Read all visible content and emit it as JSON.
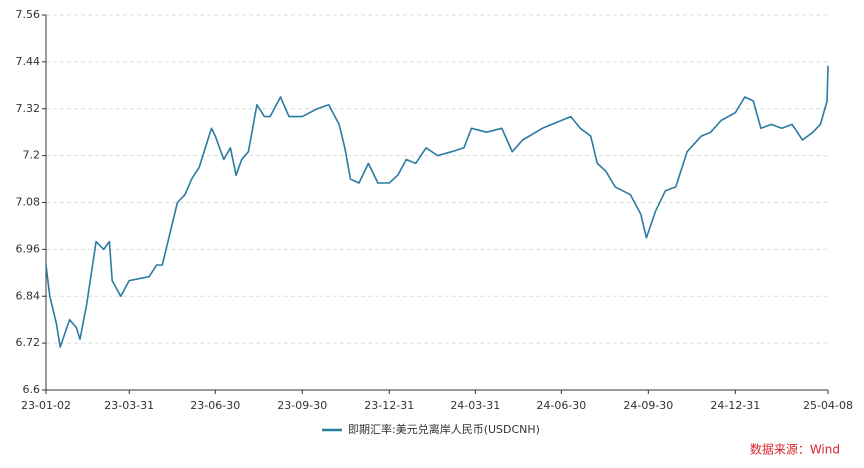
{
  "chart_data": {
    "type": "line",
    "x": [
      "23-01-02",
      "23-01-06",
      "23-01-13",
      "23-01-17",
      "23-01-27",
      "23-02-03",
      "23-02-07",
      "23-02-14",
      "23-02-24",
      "23-03-04",
      "23-03-10",
      "23-03-13",
      "23-03-22",
      "23-03-31",
      "23-04-21",
      "23-04-29",
      "23-05-05",
      "23-05-12",
      "23-05-21",
      "23-05-29",
      "23-06-05",
      "23-06-13",
      "23-06-26",
      "23-06-30",
      "23-07-09",
      "23-07-16",
      "23-07-22",
      "23-07-28",
      "23-08-04",
      "23-08-13",
      "23-08-21",
      "23-08-27",
      "23-09-07",
      "23-09-16",
      "23-09-30",
      "23-10-16",
      "23-10-28",
      "23-11-08",
      "23-11-14",
      "23-11-20",
      "23-11-29",
      "23-12-09",
      "23-12-19",
      "23-12-31",
      "24-01-09",
      "24-01-18",
      "24-01-28",
      "24-02-08",
      "24-02-20",
      "24-03-06",
      "24-03-19",
      "24-03-27",
      "24-04-12",
      "24-04-28",
      "24-05-09",
      "24-05-20",
      "24-06-10",
      "24-06-30",
      "24-07-10",
      "24-07-20",
      "24-07-31",
      "24-08-07",
      "24-08-16",
      "24-08-26",
      "24-09-11",
      "24-09-22",
      "24-09-28",
      "24-10-08",
      "24-10-18",
      "24-10-29",
      "24-11-10",
      "24-11-25",
      "24-12-05",
      "24-12-16",
      "24-12-31",
      "25-01-10",
      "25-01-19",
      "25-01-27",
      "25-02-07",
      "25-02-18",
      "25-03-01",
      "25-03-12",
      "25-03-23",
      "25-03-31",
      "25-04-07",
      "25-04-08"
    ],
    "series": [
      {
        "name": "即期汇率:美元兑离岸人民币(USDCNH)",
        "color": "#2b7ba3",
        "values": [
          6.92,
          6.84,
          6.77,
          6.71,
          6.78,
          6.76,
          6.73,
          6.82,
          6.98,
          6.96,
          6.98,
          6.88,
          6.84,
          6.88,
          6.89,
          6.92,
          6.92,
          6.99,
          7.08,
          7.1,
          7.14,
          7.17,
          7.27,
          7.25,
          7.19,
          7.22,
          7.15,
          7.19,
          7.21,
          7.33,
          7.3,
          7.3,
          7.35,
          7.3,
          7.3,
          7.32,
          7.33,
          7.28,
          7.22,
          7.14,
          7.13,
          7.18,
          7.13,
          7.13,
          7.15,
          7.19,
          7.18,
          7.22,
          7.2,
          7.21,
          7.22,
          7.27,
          7.26,
          7.27,
          7.21,
          7.24,
          7.27,
          7.29,
          7.3,
          7.27,
          7.25,
          7.18,
          7.16,
          7.12,
          7.1,
          7.05,
          6.99,
          7.06,
          7.11,
          7.12,
          7.21,
          7.25,
          7.26,
          7.29,
          7.31,
          7.35,
          7.34,
          7.27,
          7.28,
          7.27,
          7.28,
          7.24,
          7.26,
          7.28,
          7.34,
          7.43
        ]
      }
    ],
    "xlim": [
      "23-01-02",
      "25-04-08"
    ],
    "xticks": [
      "23-01-02",
      "23-03-31",
      "23-06-30",
      "23-09-30",
      "23-12-31",
      "24-03-31",
      "24-06-30",
      "24-09-30",
      "24-12-31",
      "25-04-08"
    ],
    "ylim": [
      6.6,
      7.56
    ],
    "yticks": [
      6.6,
      6.72,
      6.84,
      6.96,
      7.08,
      7.2,
      7.32,
      7.44,
      7.56
    ],
    "grid": true,
    "legend": "bottom",
    "source": "数据来源：Wind"
  }
}
